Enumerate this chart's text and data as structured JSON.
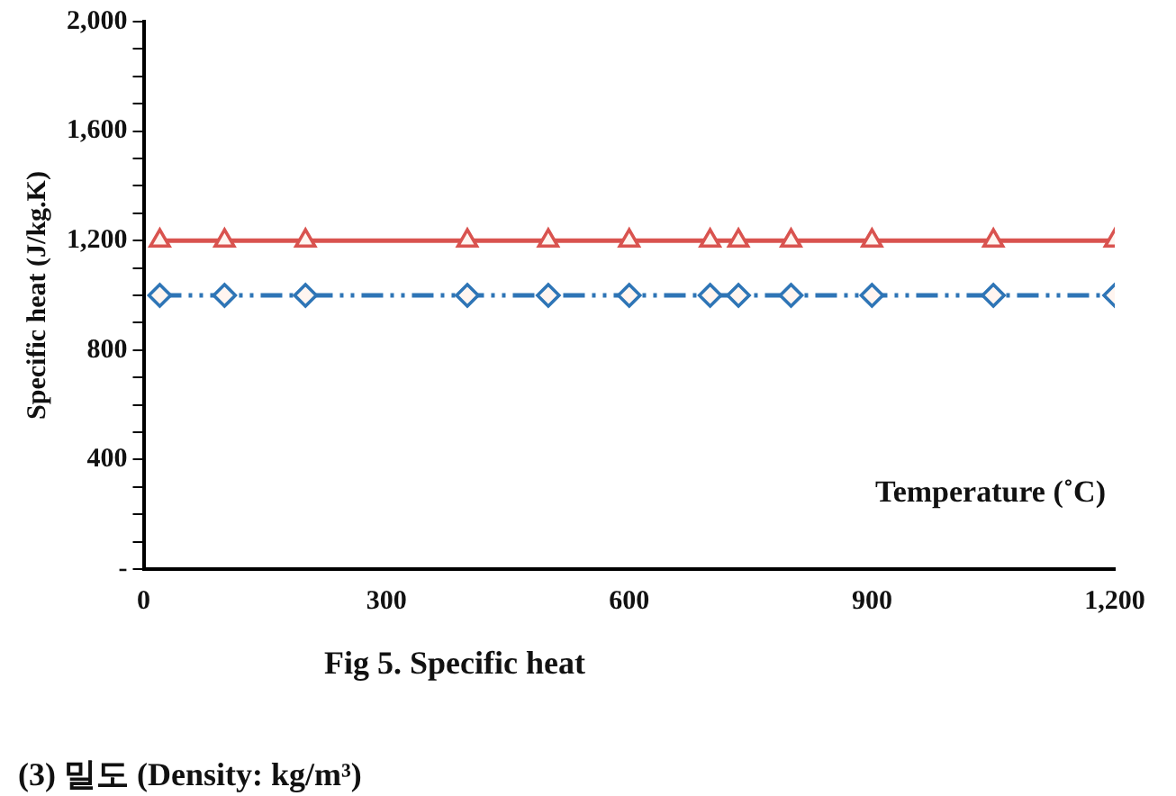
{
  "chart_data": {
    "type": "line",
    "ylabel": "Specific heat (J/kg.K)",
    "xlabel": "Temperature (˚C)",
    "x": [
      20,
      100,
      200,
      400,
      500,
      600,
      700,
      735,
      800,
      900,
      1050,
      1200
    ],
    "series": [
      {
        "color": "#d9534f",
        "values": [
          1200,
          1200,
          1200,
          1200,
          1200,
          1200,
          1200,
          1200,
          1200,
          1200,
          1200,
          1200
        ],
        "marker": "triangle",
        "line_style": "solid"
      },
      {
        "color": "#2e75b6",
        "values": [
          1000,
          1000,
          1000,
          1000,
          1000,
          1000,
          1000,
          1000,
          1000,
          1000,
          1000,
          1000
        ],
        "marker": "diamond",
        "line_style": "dashed"
      }
    ],
    "xlim": [
      0,
      1200
    ],
    "xticks": [
      0,
      300,
      600,
      900,
      {
        "value": 1200,
        "label": "1,200"
      }
    ],
    "ylim": [
      0,
      2000
    ],
    "yticks": [
      {
        "value": 0,
        "label": "-"
      },
      {
        "value": 100,
        "label": null
      },
      {
        "value": 200,
        "label": null
      },
      {
        "value": 300,
        "label": null
      },
      400,
      {
        "value": 500,
        "label": null
      },
      {
        "value": 600,
        "label": null
      },
      {
        "value": 700,
        "label": null
      },
      800,
      {
        "value": 900,
        "label": null
      },
      {
        "value": 1000,
        "label": null
      },
      {
        "value": 1100,
        "label": null
      },
      {
        "value": 1200,
        "label": "1,200"
      },
      {
        "value": 1300,
        "label": null
      },
      {
        "value": 1400,
        "label": null
      },
      {
        "value": 1500,
        "label": null
      },
      {
        "value": 1600,
        "label": "1,600"
      },
      {
        "value": 1700,
        "label": null
      },
      {
        "value": 1800,
        "label": null
      },
      {
        "value": 1900,
        "label": null
      },
      {
        "value": 2000,
        "label": "2,000"
      }
    ],
    "grid": false,
    "legend": false,
    "annotations": [
      "Fig 5.  Specific  heat",
      "(3)  밀도  (Density:  kg/m³)"
    ]
  }
}
